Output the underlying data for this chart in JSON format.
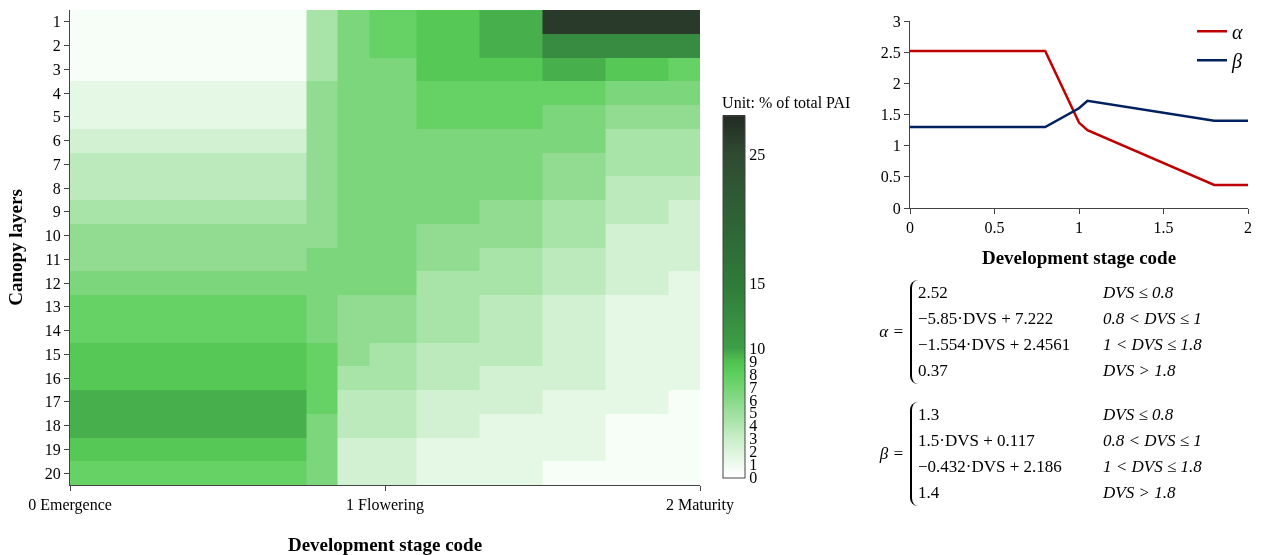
{
  "chart_data": [
    {
      "type": "heatmap",
      "xlabel": "Development stage code",
      "ylabel": "Canopy layers",
      "clabel": "Unit: % of total PAI",
      "x": [
        0,
        0.2,
        0.4,
        0.6,
        0.7,
        0.8,
        0.9,
        1.0,
        1.2,
        1.4,
        1.6,
        1.8,
        2.0
      ],
      "xlim": [
        0,
        2
      ],
      "xticks": [
        {
          "value": 0,
          "label": "0 Emergence"
        },
        {
          "value": 1,
          "label": "1 Flowering"
        },
        {
          "value": 2,
          "label": "2 Maturity"
        }
      ],
      "y_categories": [
        "1",
        "2",
        "3",
        "4",
        "5",
        "6",
        "7",
        "8",
        "9",
        "10",
        "11",
        "12",
        "13",
        "14",
        "15",
        "16",
        "17",
        "18",
        "19",
        "20"
      ],
      "clim": [
        0,
        28
      ],
      "cticks": [
        0,
        1,
        2,
        3,
        4,
        5,
        6,
        7,
        8,
        9,
        10,
        15,
        25
      ],
      "cells": [
        [
          0.5,
          0.5,
          0.5,
          0.5,
          0.5,
          4.5,
          6.5,
          7.5,
          8.5,
          9.5,
          26.5,
          26.5,
          26.5
        ],
        [
          0.5,
          0.5,
          0.5,
          0.5,
          0.5,
          4.5,
          6.5,
          7.5,
          8.5,
          9.5,
          12.5,
          12.5,
          12.5
        ],
        [
          0.5,
          0.5,
          0.5,
          0.5,
          0.5,
          4.5,
          6.5,
          6.5,
          8.5,
          8.5,
          9.5,
          8.5,
          7.5
        ],
        [
          1.5,
          1.5,
          1.5,
          1.5,
          1.5,
          5.5,
          6.5,
          6.5,
          7.5,
          7.5,
          7.5,
          6.5,
          6.5
        ],
        [
          1.5,
          1.5,
          1.5,
          1.5,
          1.5,
          5.5,
          6.5,
          6.5,
          7.5,
          7.5,
          6.5,
          5.5,
          5.5
        ],
        [
          2.5,
          2.5,
          2.5,
          2.5,
          2.5,
          5.5,
          6.5,
          6.5,
          6.5,
          6.5,
          6.5,
          4.5,
          4.5
        ],
        [
          3.5,
          3.5,
          3.5,
          3.5,
          3.5,
          5.5,
          6.5,
          6.5,
          6.5,
          6.5,
          5.5,
          4.5,
          4.5
        ],
        [
          3.5,
          3.5,
          3.5,
          3.5,
          3.5,
          5.5,
          6.5,
          6.5,
          6.5,
          6.5,
          5.5,
          3.5,
          3.5
        ],
        [
          4.5,
          4.5,
          4.5,
          4.5,
          4.5,
          5.5,
          6.5,
          6.5,
          6.5,
          5.5,
          4.5,
          3.5,
          2.5
        ],
        [
          5.5,
          5.5,
          5.5,
          5.5,
          5.5,
          5.5,
          6.5,
          6.5,
          5.5,
          5.5,
          4.5,
          2.5,
          2.5
        ],
        [
          5.5,
          5.5,
          5.5,
          5.5,
          5.5,
          6.5,
          6.5,
          6.5,
          5.5,
          4.5,
          3.5,
          2.5,
          2.5
        ],
        [
          6.5,
          6.5,
          6.5,
          6.5,
          6.5,
          6.5,
          6.5,
          6.5,
          4.5,
          4.5,
          3.5,
          2.5,
          1.5
        ],
        [
          7.5,
          7.5,
          7.5,
          7.5,
          7.5,
          6.5,
          5.5,
          5.5,
          4.5,
          3.5,
          2.5,
          1.5,
          1.5
        ],
        [
          7.5,
          7.5,
          7.5,
          7.5,
          7.5,
          6.5,
          5.5,
          5.5,
          4.5,
          3.5,
          2.5,
          1.5,
          1.5
        ],
        [
          8.5,
          8.5,
          8.5,
          8.5,
          8.5,
          7.5,
          5.5,
          4.5,
          3.5,
          3.5,
          2.5,
          1.5,
          1.5
        ],
        [
          8.5,
          8.5,
          8.5,
          8.5,
          8.5,
          7.5,
          4.5,
          4.5,
          3.5,
          2.5,
          2.5,
          1.5,
          1.5
        ],
        [
          9.5,
          9.5,
          9.5,
          9.5,
          9.5,
          7.5,
          3.5,
          3.5,
          2.5,
          2.5,
          1.5,
          1.5,
          0.5
        ],
        [
          9.5,
          9.5,
          9.5,
          9.5,
          9.5,
          6.5,
          3.5,
          3.5,
          2.5,
          1.5,
          1.5,
          0.5,
          0.5
        ],
        [
          8.5,
          8.5,
          8.5,
          8.5,
          8.5,
          6.5,
          2.5,
          2.5,
          1.5,
          1.5,
          1.5,
          0.5,
          0.5
        ],
        [
          7.5,
          7.5,
          7.5,
          7.5,
          7.5,
          6.5,
          2.5,
          2.5,
          1.5,
          1.5,
          0.5,
          0.5,
          0.5
        ]
      ]
    },
    {
      "type": "line",
      "xlabel": "Development stage code",
      "xlim": [
        0,
        2
      ],
      "xticks": [
        0,
        0.5,
        1,
        1.5,
        2
      ],
      "ylim": [
        0,
        3
      ],
      "yticks": [
        0,
        0.5,
        1,
        1.5,
        2,
        2.5,
        3
      ],
      "grid": false,
      "legend": "top right",
      "marker": "none",
      "series": [
        {
          "name": "α",
          "color": "#c00000",
          "x": [
            0,
            0.8,
            1,
            1.05,
            1.8,
            2
          ],
          "values": [
            2.52,
            2.52,
            1.37,
            1.25,
            0.37,
            0.37
          ]
        },
        {
          "name": "β",
          "color": "#002060",
          "x": [
            0,
            0.8,
            1,
            1.05,
            1.8,
            2
          ],
          "values": [
            1.3,
            1.3,
            1.6,
            1.72,
            1.4,
            1.4
          ]
        }
      ]
    },
    {
      "type": "other",
      "annotations": [
        "α =",
        "2.52",
        "DVS ≤ 0.8",
        "−5.85·DVS + 7.222",
        "0.8 < DVS ≤ 1",
        "−1.554·DVS + 2.4561",
        "1 < DVS ≤ 1.8",
        "0.37",
        "DVS > 1.8",
        "β =",
        "1.3",
        "DVS ≤ 0.8",
        "1.5·DVS + 0.117",
        "0.8 < DVS ≤ 1",
        "−0.432·DVS + 2.186",
        "1 < DVS ≤ 1.8",
        "1.4",
        "DVS > 1.8"
      ]
    }
  ]
}
